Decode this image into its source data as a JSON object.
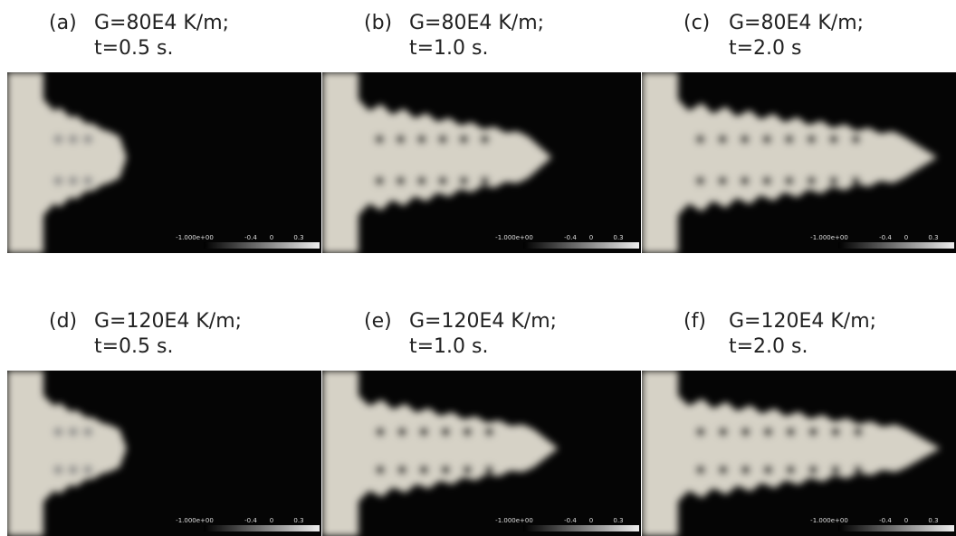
{
  "panels": [
    {
      "label": "(a)",
      "line1": "G=80E4 K/m;",
      "line2": "t=0.5 s.",
      "colorbar": [
        "-1.000e+00",
        "-0.4",
        "0",
        "0.3"
      ]
    },
    {
      "label": "(b)",
      "line1": "G=80E4 K/m;",
      "line2": "t=1.0 s.",
      "colorbar": [
        "-1.000e+00",
        "-0.4",
        "0",
        "0.3"
      ]
    },
    {
      "label": "(c)",
      "line1": "G=80E4 K/m;",
      "line2": "t=2.0 s",
      "colorbar": [
        "-1.000e+00",
        "-0.4",
        "0",
        "0.3"
      ]
    },
    {
      "label": "(d)",
      "line1": "G=120E4 K/m;",
      "line2": "t=0.5 s.",
      "colorbar": [
        "-1.000e+00",
        "-0.4",
        "0",
        "0.3"
      ]
    },
    {
      "label": "(e)",
      "line1": "G=120E4 K/m;",
      "line2": "t=1.0 s.",
      "colorbar": [
        "-1.000e+00",
        "-0.4",
        "0",
        "0.3"
      ]
    },
    {
      "label": "(f)",
      "line1": "G=120E4 K/m;",
      "line2": "t=2.0 s.",
      "colorbar": [
        "-1.000e+00",
        "-0.4",
        "0",
        "0.3"
      ]
    }
  ]
}
